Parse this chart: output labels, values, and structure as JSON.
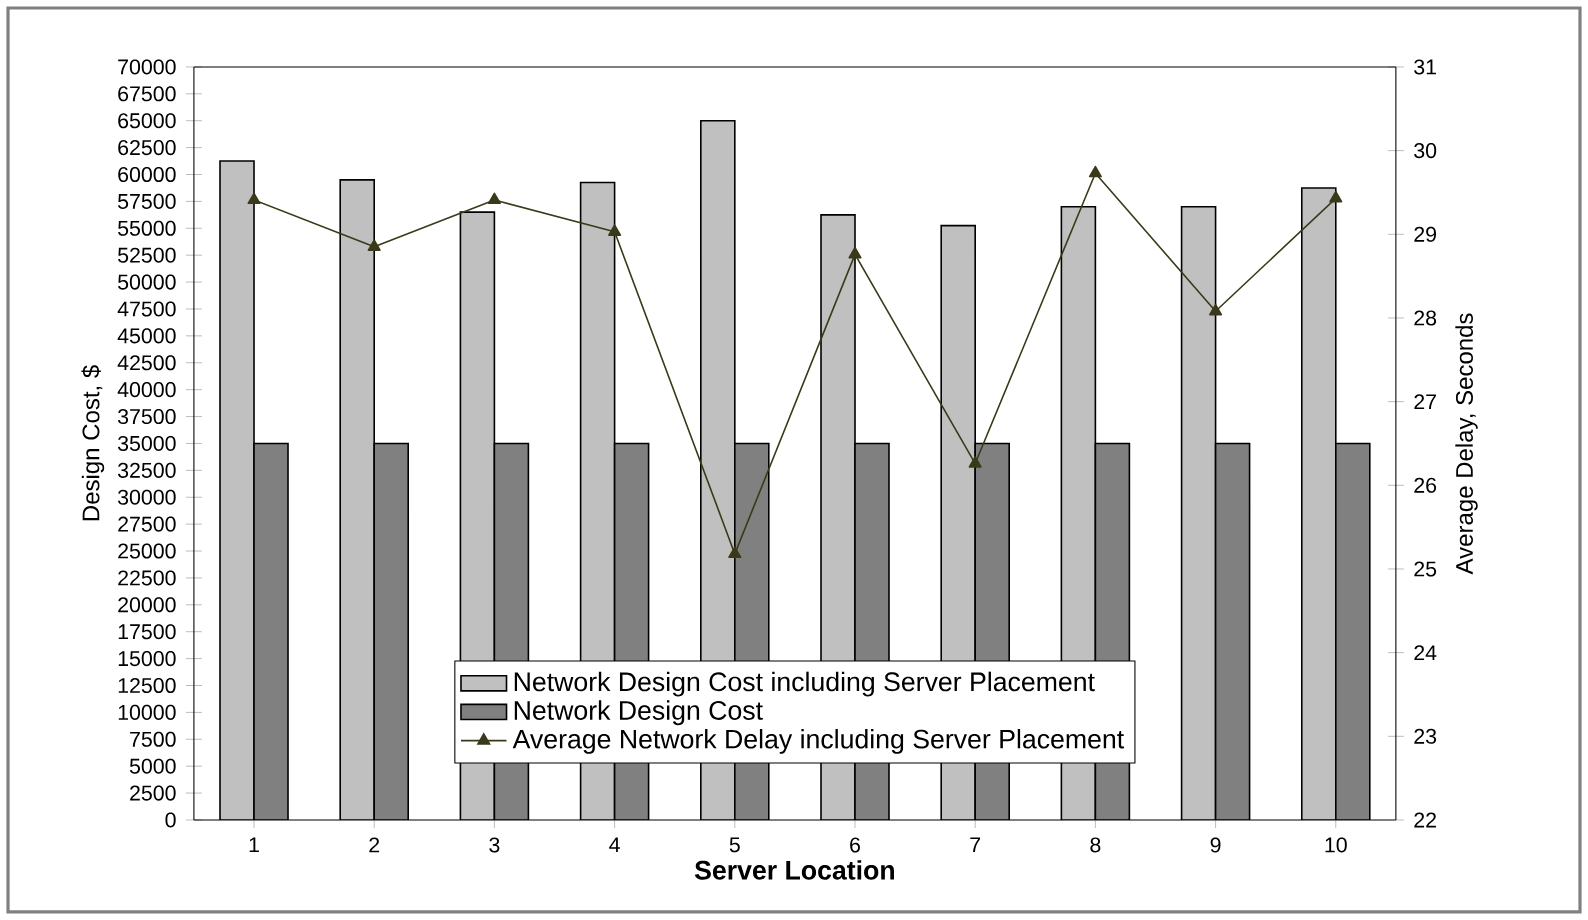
{
  "chart_data": {
    "type": "bar",
    "xlabel": "Server Location",
    "ylabel": "Design Cost, $",
    "y2label": "Average Delay, Seconds",
    "categories": [
      "1",
      "2",
      "3",
      "4",
      "5",
      "6",
      "7",
      "8",
      "9",
      "10"
    ],
    "series": [
      {
        "name": "Network Design Cost including Server Placement",
        "color": "#c0c0c0",
        "values": [
          61250,
          59500,
          56500,
          59250,
          65000,
          56250,
          55250,
          57000,
          57000,
          58750
        ]
      },
      {
        "name": "Network Design Cost",
        "color": "#808080",
        "values": [
          35000,
          35000,
          35000,
          35000,
          35000,
          35000,
          35000,
          35000,
          35000,
          35000
        ]
      },
      {
        "name": "Average Network Delay including Server Placement",
        "type": "line",
        "axis": "y2",
        "marker": "triangle",
        "color": "#3a3a1a",
        "values": [
          29.41,
          28.85,
          29.41,
          29.03,
          25.18,
          28.76,
          26.26,
          29.73,
          28.08,
          29.43
        ]
      }
    ],
    "ylim": [
      0,
      70000
    ],
    "yticks": [
      0,
      2500,
      5000,
      7500,
      10000,
      12500,
      15000,
      17500,
      20000,
      22500,
      25000,
      27500,
      30000,
      32500,
      35000,
      37500,
      40000,
      42500,
      45000,
      47500,
      50000,
      52500,
      55000,
      57500,
      60000,
      62500,
      65000,
      67500,
      70000
    ],
    "y2lim": [
      22,
      31
    ],
    "y2ticks": [
      22,
      23,
      24,
      25,
      26,
      27,
      28,
      29,
      30,
      31
    ],
    "legend": "bottom",
    "grid": false
  }
}
